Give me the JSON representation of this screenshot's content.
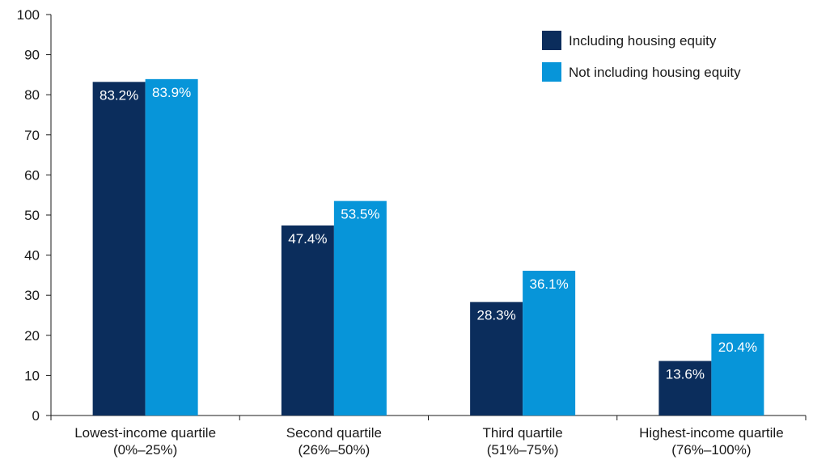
{
  "chart_data": {
    "type": "bar",
    "title": "",
    "xlabel": "",
    "ylabel": "",
    "ylim": [
      0,
      100
    ],
    "yticks": [
      0,
      10,
      20,
      30,
      40,
      50,
      60,
      70,
      80,
      90,
      100
    ],
    "grid": false,
    "legend_position": "top-right",
    "categories": [
      [
        "Lowest-income quartile",
        "(0%–25%)"
      ],
      [
        "Second quartile",
        "(26%–50%)"
      ],
      [
        "Third quartile",
        "(51%–75%)"
      ],
      [
        "Highest-income quartile",
        "(76%–100%)"
      ]
    ],
    "series": [
      {
        "name": "Including housing equity",
        "color": "#0b2d5c",
        "values": [
          83.2,
          47.4,
          28.3,
          13.6
        ],
        "labels": [
          "83.2%",
          "47.4%",
          "28.3%",
          "13.6%"
        ]
      },
      {
        "name": "Not including housing equity",
        "color": "#0795d9",
        "values": [
          83.9,
          53.5,
          36.1,
          20.4
        ],
        "labels": [
          "83.9%",
          "53.5%",
          "36.1%",
          "20.4%"
        ]
      }
    ]
  }
}
